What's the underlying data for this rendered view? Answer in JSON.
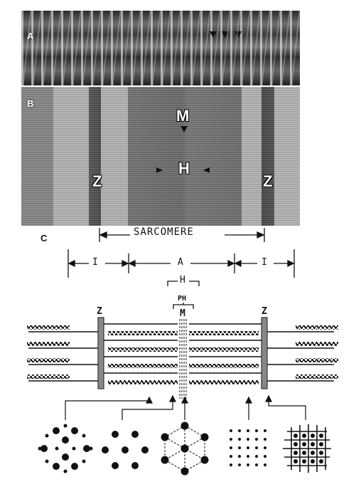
{
  "panels": {
    "a": {
      "label": "A"
    },
    "b": {
      "label": "B",
      "labels": {
        "m": "M",
        "h": "H",
        "z_left": "Z",
        "z_right": "Z"
      }
    },
    "c": {
      "label": "C"
    }
  },
  "diagram": {
    "sarcomere": "SARCOMERE",
    "i_left": "I",
    "a_band": "A",
    "i_right": "I",
    "h_zone": "H",
    "ph": "PH",
    "m_line": "M",
    "z_left": "Z",
    "z_right": "Z"
  },
  "colors": {
    "ink": "#111111",
    "paper": "#ffffff"
  }
}
